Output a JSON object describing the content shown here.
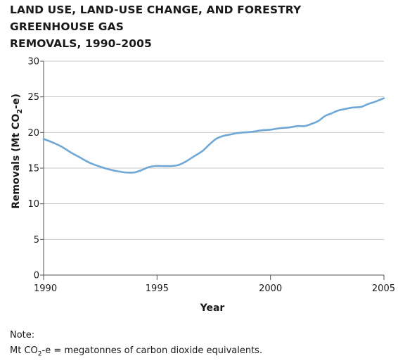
{
  "chart_data": {
    "type": "line",
    "title_line1": "LAND USE, LAND-USE CHANGE, AND FORESTRY GREENHOUSE GAS",
    "title_line2": "REMOVALS, 1990–2005",
    "xlabel": "Year",
    "ylabel_main": "Removals (Mt CO",
    "ylabel_sub": "2",
    "ylabel_end": "-e)",
    "xlim": [
      1990,
      2005
    ],
    "ylim": [
      0,
      30
    ],
    "x_ticks": [
      1990,
      1995,
      2000,
      2005
    ],
    "y_ticks": [
      0,
      5,
      10,
      15,
      20,
      25,
      30
    ],
    "grid": "horizontal",
    "line_color": "#6fa8d6",
    "grid_color": "#c8c8c8",
    "series": [
      {
        "x": [
          1990.0,
          1990.4,
          1990.8,
          1991.2,
          1991.6,
          1992.0,
          1992.4,
          1992.8,
          1993.2,
          1993.6,
          1994.0,
          1994.3,
          1994.6,
          1994.9,
          1995.2,
          1995.6,
          1995.9,
          1996.2,
          1996.6,
          1997.0,
          1997.3,
          1997.6,
          1997.9,
          1998.2,
          1998.5,
          1998.8,
          1999.2,
          1999.6,
          2000.0,
          2000.4,
          2000.8,
          2001.2,
          2001.5,
          2001.8,
          2002.1,
          2002.4,
          2002.7,
          2003.0,
          2003.3,
          2003.6,
          2004.0,
          2004.3,
          2004.6,
          2005.0
        ],
        "values": [
          19.1,
          18.6,
          18.0,
          17.2,
          16.5,
          15.8,
          15.3,
          14.9,
          14.6,
          14.4,
          14.4,
          14.7,
          15.1,
          15.3,
          15.3,
          15.3,
          15.4,
          15.8,
          16.6,
          17.4,
          18.3,
          19.1,
          19.5,
          19.7,
          19.9,
          20.0,
          20.1,
          20.3,
          20.4,
          20.6,
          20.7,
          20.9,
          20.9,
          21.2,
          21.6,
          22.3,
          22.7,
          23.1,
          23.3,
          23.5,
          23.6,
          24.0,
          24.3,
          24.8
        ]
      }
    ]
  },
  "note": {
    "title": "Note:",
    "text_prefix": "Mt CO",
    "text_sub": "2",
    "text_suffix": "-e = megatonnes of carbon dioxide equivalents."
  }
}
